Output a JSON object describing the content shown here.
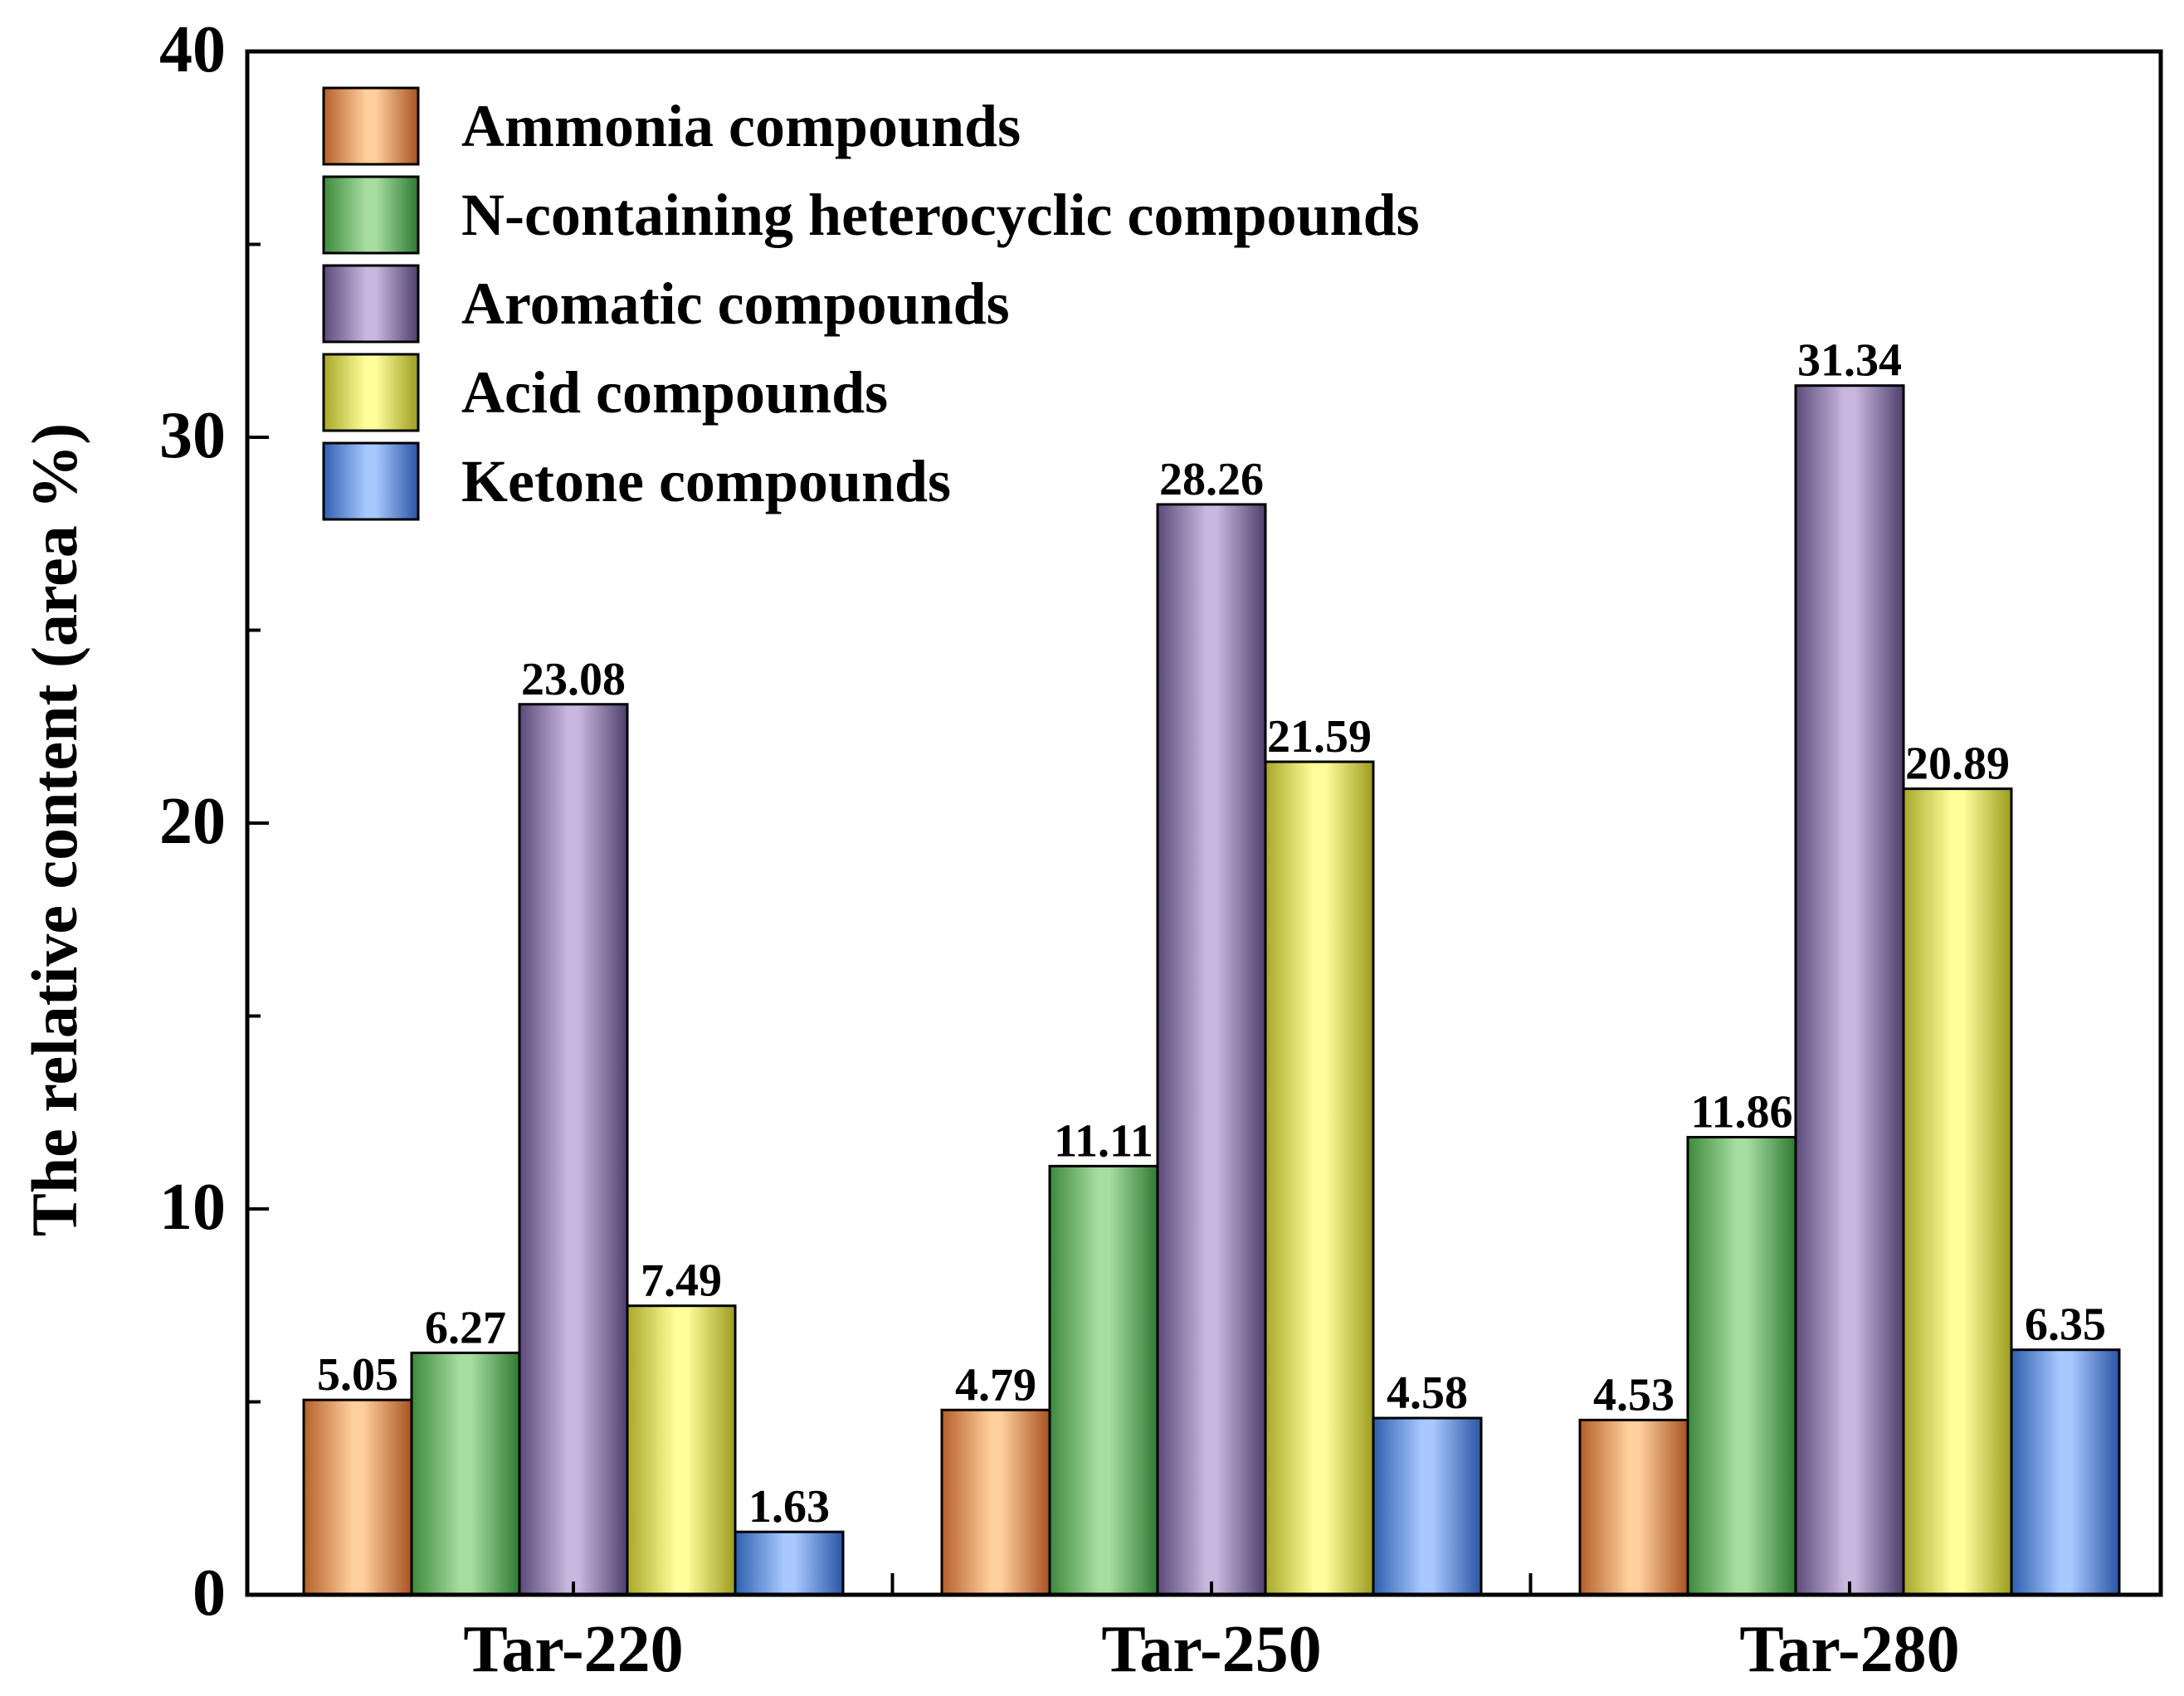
{
  "chart_data": {
    "type": "bar",
    "title": "",
    "xlabel": "",
    "ylabel": "The relative content (area %)",
    "ylim": [
      0,
      40
    ],
    "yticks": [
      0,
      10,
      20,
      30,
      40
    ],
    "categories": [
      "Tar-220",
      "Tar-250",
      "Tar-280"
    ],
    "legend_position": "top-left",
    "series": [
      {
        "name": "Ammonia compounds",
        "values": [
          5.05,
          4.79,
          4.53
        ],
        "labels": [
          "5.05",
          "4.79",
          "4.53"
        ],
        "colors": [
          "#b5602a",
          "#ffcf9c",
          "#a85322"
        ]
      },
      {
        "name": "N-containing heterocyclic compounds",
        "values": [
          6.27,
          11.11,
          11.86
        ],
        "labels": [
          "6.27",
          "11.11",
          "11.86"
        ],
        "colors": [
          "#3d8a3d",
          "#a7ddA0",
          "#2f7a34"
        ]
      },
      {
        "name": "Aromatic compounds",
        "values": [
          23.08,
          28.26,
          31.34
        ],
        "labels": [
          "23.08",
          "28.26",
          "31.34"
        ],
        "colors": [
          "#5b4a7a",
          "#c9b7df",
          "#4e3f6c"
        ]
      },
      {
        "name": "Acid compounds",
        "values": [
          7.49,
          21.59,
          20.89
        ],
        "labels": [
          "7.49",
          "21.59",
          "20.89"
        ],
        "colors": [
          "#a8a82a",
          "#ffff9c",
          "#9c9c20"
        ]
      },
      {
        "name": "Ketone compounds",
        "values": [
          1.63,
          4.58,
          6.35
        ],
        "labels": [
          "1.63",
          "4.58",
          "6.35"
        ],
        "colors": [
          "#2f5fb0",
          "#a8c8ff",
          "#2a55a5"
        ]
      }
    ]
  }
}
